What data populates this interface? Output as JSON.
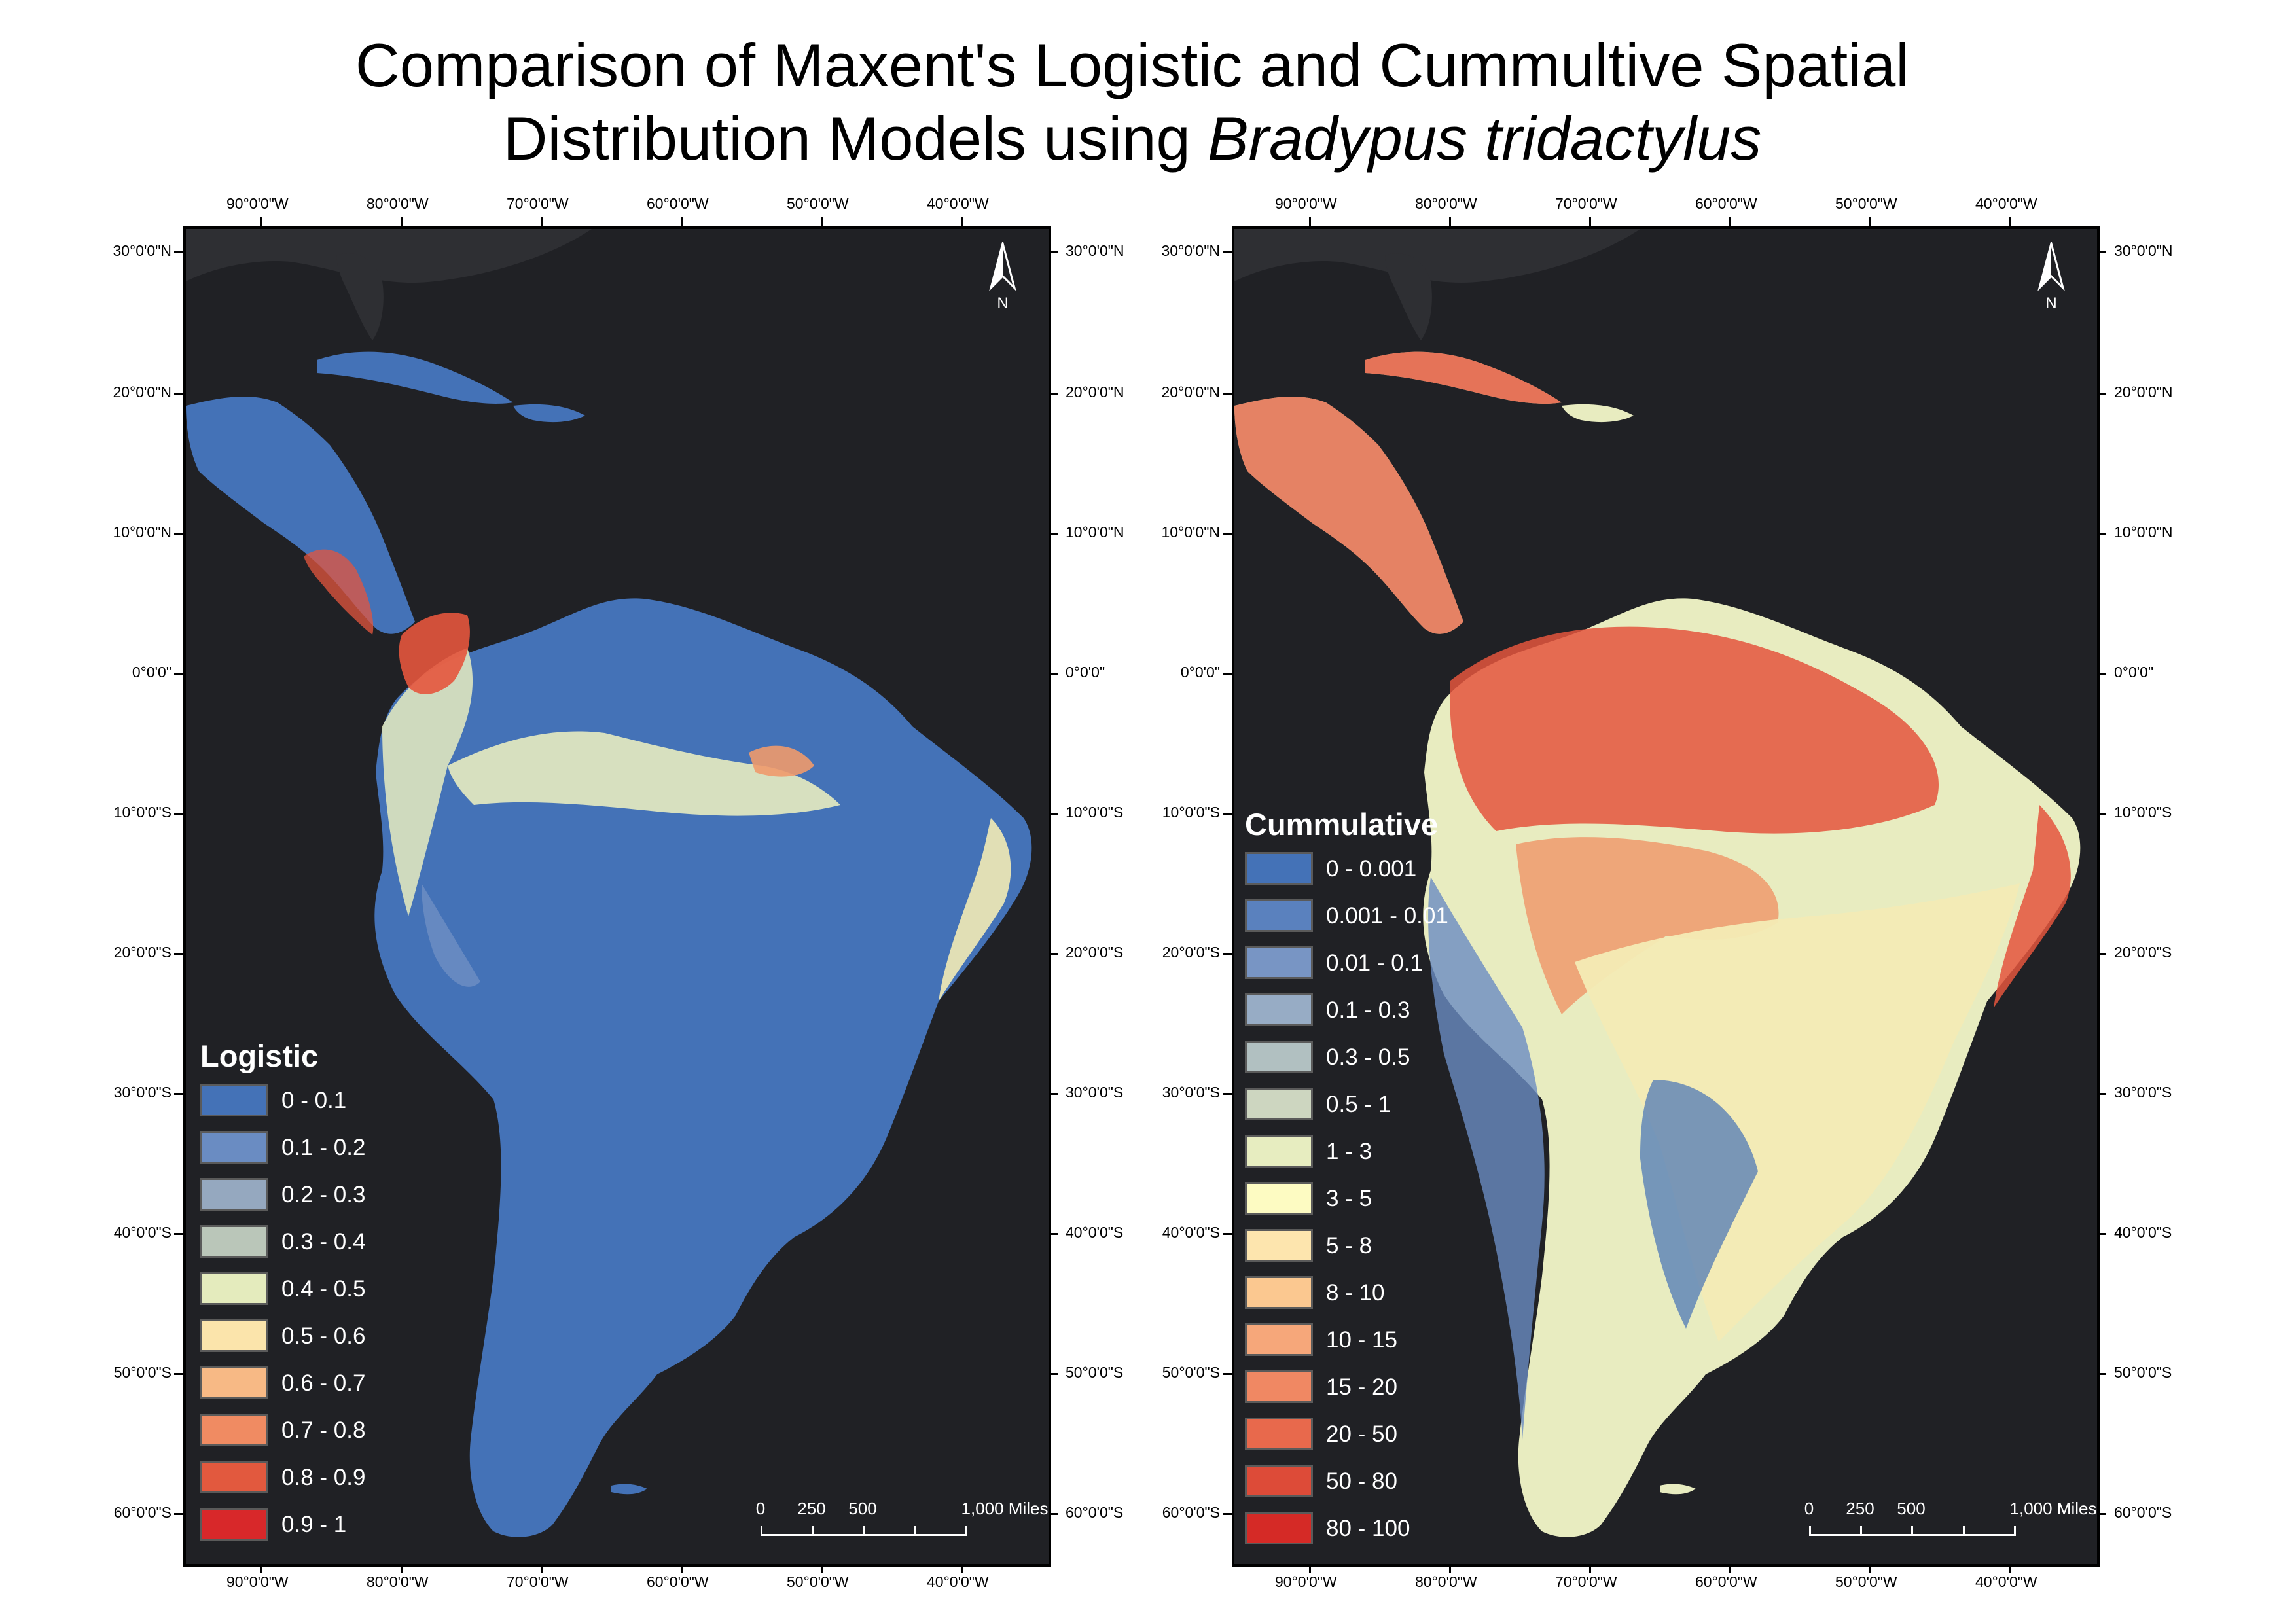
{
  "title": {
    "line1": "Comparison of Maxent's Logistic and Cummultive Spatial",
    "line2_plain": "Distribution Models using ",
    "line2_italic": "Bradypus tridactylus"
  },
  "axes": {
    "lon_labels": [
      "90°0'0\"W",
      "80°0'0\"W",
      "70°0'0\"W",
      "60°0'0\"W",
      "50°0'0\"W",
      "40°0'0\"W"
    ],
    "lat_labels": [
      "30°0'0\"N",
      "20°0'0\"N",
      "10°0'0\"N",
      "0°0'0\"",
      "10°0'0\"S",
      "20°0'0\"S",
      "30°0'0\"S",
      "40°0'0\"S",
      "50°0'0\"S",
      "60°0'0\"S"
    ]
  },
  "colors": {
    "background": "#202125",
    "land_dark": "#2e2f33",
    "blue": "#4472b7",
    "blue_mid": "#6a8cc2",
    "pale": "#e8ecc0",
    "yellow": "#f3ebb5",
    "orange": "#ef9a6c",
    "red": "#e4553d"
  },
  "maps": [
    {
      "id": "logistic",
      "legend_title": "Logistic",
      "legend": [
        {
          "label": "0 - 0.1",
          "color": "#4472b7"
        },
        {
          "label": "0.1 - 0.2",
          "color": "#6a8cc2"
        },
        {
          "label": "0.2 - 0.3",
          "color": "#95a8bf"
        },
        {
          "label": "0.3 - 0.4",
          "color": "#bac6b9"
        },
        {
          "label": "0.4 - 0.5",
          "color": "#e4ebbd"
        },
        {
          "label": "0.5 - 0.6",
          "color": "#fbe4ab"
        },
        {
          "label": "0.6 - 0.7",
          "color": "#f7b985"
        },
        {
          "label": "0.7 - 0.8",
          "color": "#f08b62"
        },
        {
          "label": "0.8 - 0.9",
          "color": "#e2593e"
        },
        {
          "label": "0.9 - 1",
          "color": "#d8282a"
        }
      ],
      "scale": {
        "labels": [
          "0",
          "250",
          "500",
          "1,000 Miles"
        ]
      },
      "north": "N"
    },
    {
      "id": "cumulative",
      "legend_title": "Cummulative",
      "legend": [
        {
          "label": "0 - 0.001",
          "color": "#4472b7"
        },
        {
          "label": "0.001 - 0.01",
          "color": "#5a81be"
        },
        {
          "label": "0.01 - 0.1",
          "color": "#7895c4"
        },
        {
          "label": "0.1 - 0.3",
          "color": "#97acc5"
        },
        {
          "label": "0.3 - 0.5",
          "color": "#b1c0c1"
        },
        {
          "label": "0.5 - 1",
          "color": "#cdd6c0"
        },
        {
          "label": "1 - 3",
          "color": "#e7edc0"
        },
        {
          "label": "3 - 5",
          "color": "#fdfbc2"
        },
        {
          "label": "5 - 8",
          "color": "#fde5ae"
        },
        {
          "label": "8 - 10",
          "color": "#fbc890"
        },
        {
          "label": "10 - 15",
          "color": "#f6a77a"
        },
        {
          "label": "15 - 20",
          "color": "#f08863"
        },
        {
          "label": "20 - 50",
          "color": "#e8694c"
        },
        {
          "label": "50 - 80",
          "color": "#dd4b38"
        },
        {
          "label": "80 - 100",
          "color": "#d52a26"
        }
      ],
      "scale": {
        "labels": [
          "0",
          "250",
          "500",
          "1,000 Miles"
        ]
      },
      "north": "N"
    }
  ]
}
